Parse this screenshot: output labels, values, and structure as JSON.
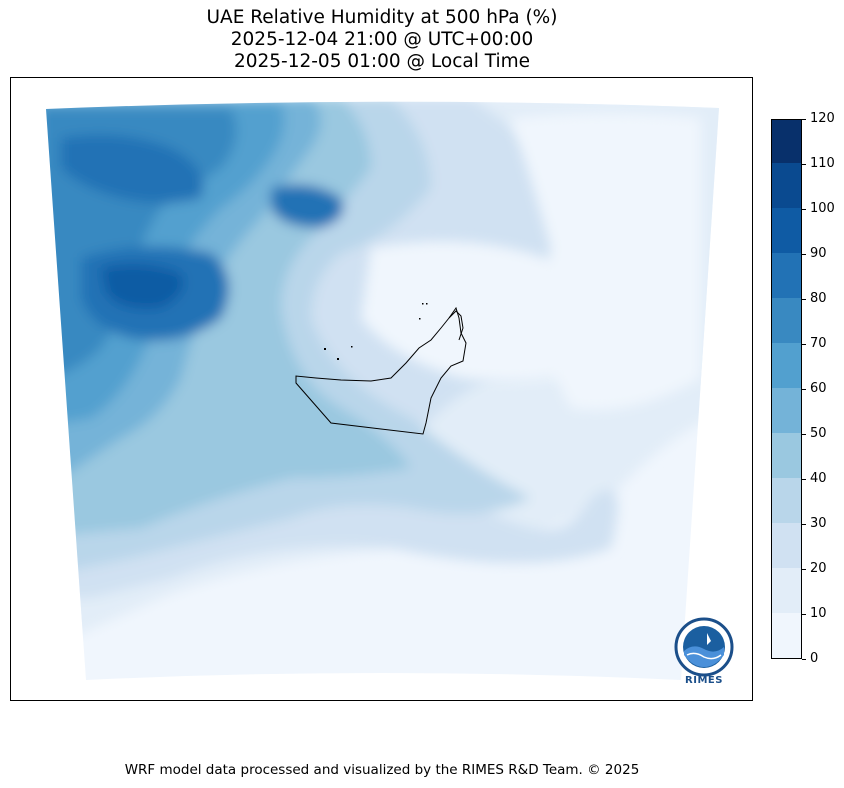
{
  "title": {
    "line1": "UAE Relative Humidity at 500 hPa (%)",
    "line2": "2025-12-04 21:00 @ UTC+00:00",
    "line3": "2025-12-05 01:00 @ Local Time"
  },
  "colorbar": {
    "ticks": [
      "0",
      "10",
      "20",
      "30",
      "40",
      "50",
      "60",
      "70",
      "80",
      "90",
      "100",
      "110",
      "120"
    ],
    "levels": [
      0,
      10,
      20,
      30,
      40,
      50,
      60,
      70,
      80,
      90,
      100,
      110,
      120
    ],
    "colors": [
      "#f0f6fd",
      "#e2edf8",
      "#d0e1f2",
      "#b9d6ea",
      "#9ac8e0",
      "#74b3d8",
      "#52a0cf",
      "#3989c1",
      "#2272b5",
      "#0f5ba4",
      "#0a4a90",
      "#08306b"
    ]
  },
  "logo": {
    "text": "RIMES"
  },
  "footer": "WRF model data processed and visualized by the RIMES R&D Team. © 2025"
}
